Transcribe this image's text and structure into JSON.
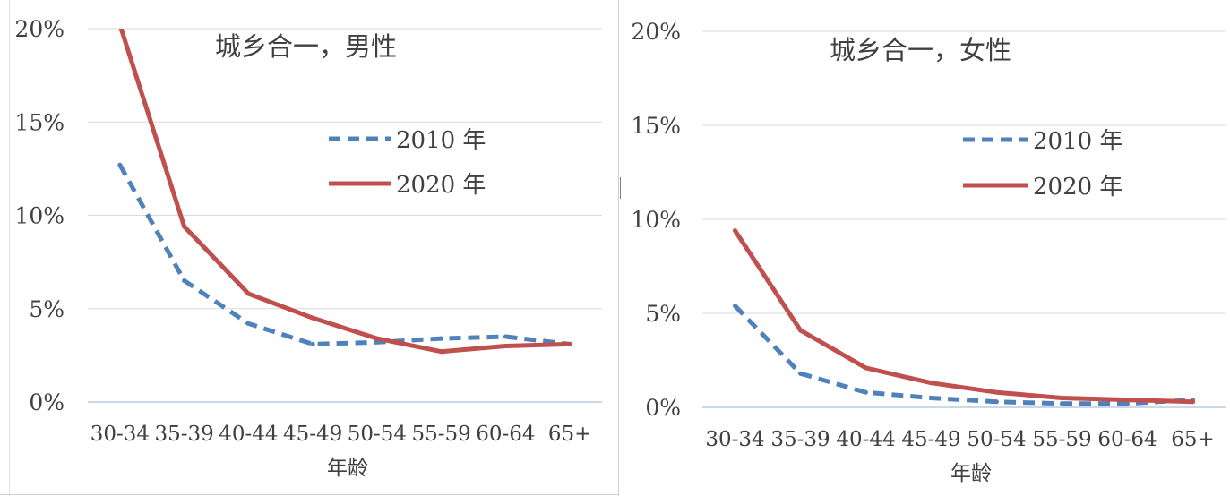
{
  "chart_data": [
    {
      "type": "line",
      "title": "城乡合一，男性",
      "xlabel": "年龄",
      "ylabel": "",
      "categories": [
        "30-34",
        "35-39",
        "40-44",
        "45-49",
        "50-54",
        "55-59",
        "60-64",
        "65+"
      ],
      "ylim": [
        0,
        20
      ],
      "yticks": [
        0,
        5,
        10,
        15,
        20
      ],
      "ytick_labels": [
        "0%",
        "5%",
        "10%",
        "15%",
        "20%"
      ],
      "grid": true,
      "legend_position": "upper-right",
      "series": [
        {
          "name": "2010 年",
          "style": "dashed",
          "color": "#4F81BD",
          "values": [
            12.7,
            6.5,
            4.2,
            3.1,
            3.2,
            3.4,
            3.5,
            3.1
          ]
        },
        {
          "name": "2020 年",
          "style": "solid",
          "color": "#C0504D",
          "values": [
            20.2,
            9.4,
            5.8,
            4.5,
            3.4,
            2.7,
            3.0,
            3.1
          ]
        }
      ]
    },
    {
      "type": "line",
      "title": "城乡合一，女性",
      "xlabel": "年龄",
      "ylabel": "",
      "categories": [
        "30-34",
        "35-39",
        "40-44",
        "45-49",
        "50-54",
        "55-59",
        "60-64",
        "65+"
      ],
      "ylim": [
        0,
        20
      ],
      "yticks": [
        0,
        5,
        10,
        15,
        20
      ],
      "ytick_labels": [
        "0%",
        "5%",
        "10%",
        "15%",
        "20%"
      ],
      "grid": true,
      "legend_position": "upper-right",
      "series": [
        {
          "name": "2010 年",
          "style": "dashed",
          "color": "#4F81BD",
          "values": [
            5.4,
            1.8,
            0.8,
            0.5,
            0.3,
            0.2,
            0.2,
            0.4
          ]
        },
        {
          "name": "2020 年",
          "style": "solid",
          "color": "#C0504D",
          "values": [
            9.4,
            4.1,
            2.1,
            1.3,
            0.8,
            0.5,
            0.4,
            0.3
          ]
        }
      ]
    }
  ]
}
